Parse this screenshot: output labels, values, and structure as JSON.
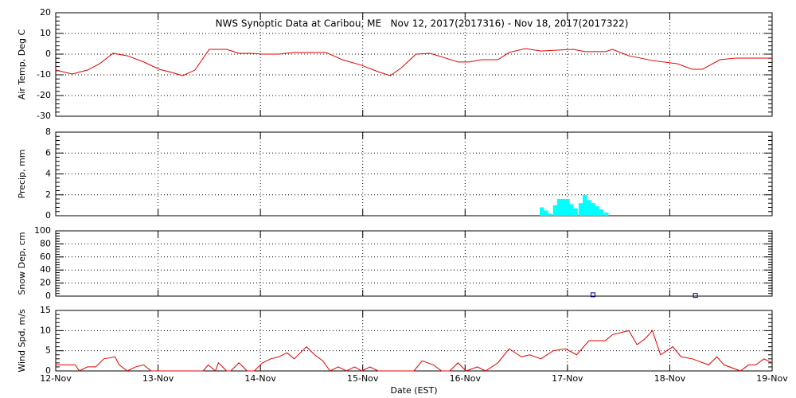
{
  "chart_data": [
    {
      "type": "line",
      "title": "NWS Synoptic Data at Caribou, ME   Nov 12, 2017(2017316) - Nov 18, 2017(2017322)",
      "ylabel": "Air Temp, Deg C",
      "color": "#e00000",
      "x": [
        0,
        0.16,
        0.31,
        0.43,
        0.56,
        0.7,
        0.86,
        1.01,
        1.13,
        1.24,
        1.36,
        1.5,
        1.67,
        1.79,
        1.91,
        2.02,
        2.18,
        2.33,
        2.57,
        2.64,
        2.8,
        2.99,
        3.15,
        3.27,
        3.38,
        3.52,
        3.66,
        3.81,
        3.93,
        4.04,
        4.16,
        4.32,
        4.43,
        4.59,
        4.74,
        4.9,
        5.06,
        5.17,
        5.37,
        5.44,
        5.6,
        5.83,
        6.07,
        6.22,
        6.32,
        6.49,
        6.65,
        6.81,
        7
      ],
      "values": [
        -7.7,
        -9.6,
        -7.7,
        -4.6,
        0.4,
        -0.8,
        -3.8,
        -7.3,
        -8.8,
        -10.4,
        -7.7,
        2.3,
        2.3,
        0.4,
        0.4,
        0,
        0,
        0.8,
        0.8,
        0.8,
        -2.7,
        -5.4,
        -8.5,
        -10.4,
        -6.5,
        0,
        0.4,
        -1.9,
        -3.8,
        -3.8,
        -2.7,
        -2.7,
        0.8,
        2.7,
        1.5,
        1.9,
        2.3,
        1.2,
        1.2,
        2.3,
        -0.8,
        -3.1,
        -4.6,
        -7.3,
        -7.3,
        -2.7,
        -1.9,
        -1.9,
        -1.9
      ],
      "xlim": [
        0,
        7
      ],
      "xticks": [
        0,
        1,
        2,
        3,
        4,
        5,
        6,
        7
      ],
      "ylim": [
        -30,
        20
      ],
      "yticks": [
        -30,
        -20,
        -10,
        0,
        10,
        20
      ],
      "grid": true
    },
    {
      "type": "bar",
      "ylabel": "Precip, mm",
      "color": "#00ffff",
      "x": [
        4.75,
        4.79,
        4.83,
        4.88,
        4.92,
        4.96,
        5.0,
        5.04,
        5.08,
        5.13,
        5.17,
        5.21,
        5.25,
        5.29,
        5.33,
        5.38
      ],
      "values": [
        0.8,
        0.5,
        0.2,
        1.0,
        1.6,
        1.6,
        1.6,
        1.1,
        0.7,
        1.2,
        2.0,
        1.5,
        1.2,
        0.9,
        0.6,
        0.3
      ],
      "xlim": [
        0,
        7
      ],
      "xticks": [
        0,
        1,
        2,
        3,
        4,
        5,
        6,
        7
      ],
      "ylim": [
        0,
        8
      ],
      "yticks": [
        0,
        2,
        4,
        6,
        8
      ],
      "grid": true
    },
    {
      "type": "scatter",
      "ylabel": "Snow Dep, cm",
      "color": "#000080",
      "x": [
        5.25,
        6.25
      ],
      "values": [
        2,
        1
      ],
      "xlim": [
        0,
        7
      ],
      "xticks": [
        0,
        1,
        2,
        3,
        4,
        5,
        6,
        7
      ],
      "ylim": [
        0,
        100
      ],
      "yticks": [
        0,
        20,
        40,
        60,
        80,
        100
      ],
      "grid": true
    },
    {
      "type": "line",
      "ylabel": "Wind Spd, m/s",
      "xlabel": "Date (EST)",
      "color": "#e00000",
      "x": [
        0,
        0.08,
        0.19,
        0.23,
        0.31,
        0.39,
        0.47,
        0.58,
        0.62,
        0.7,
        0.78,
        0.86,
        0.93,
        1.01,
        1.44,
        1.49,
        1.56,
        1.59,
        1.67,
        1.71,
        1.79,
        1.87,
        1.94,
        2.02,
        2.1,
        2.18,
        2.26,
        2.33,
        2.45,
        2.53,
        2.61,
        2.68,
        2.76,
        2.84,
        2.92,
        2.99,
        3.07,
        3.15,
        3.27,
        3.5,
        3.58,
        3.69,
        3.77,
        3.85,
        3.93,
        4.01,
        4.12,
        4.2,
        4.32,
        4.43,
        4.55,
        4.63,
        4.74,
        4.86,
        4.98,
        5.09,
        5.21,
        5.37,
        5.44,
        5.6,
        5.68,
        5.76,
        5.83,
        5.91,
        6.03,
        6.11,
        6.22,
        6.38,
        6.46,
        6.53,
        6.69,
        6.77,
        6.84,
        6.92,
        7
      ],
      "values": [
        1.5,
        1.5,
        1.5,
        0,
        1,
        1,
        3,
        3.5,
        1.5,
        0,
        1,
        1.5,
        0,
        0,
        0,
        1.5,
        0,
        2,
        0,
        0,
        2,
        0,
        0,
        2,
        3,
        3.5,
        4.5,
        3,
        6,
        4,
        2.5,
        0,
        1,
        0,
        1,
        0,
        1,
        0,
        0,
        0,
        2.5,
        1.5,
        0,
        0,
        2,
        0,
        1,
        0,
        2,
        5.5,
        3.5,
        4,
        3,
        5,
        5.5,
        4,
        7.5,
        7.5,
        9,
        10,
        6.5,
        8,
        10,
        4,
        6,
        3.5,
        3,
        1.5,
        3.5,
        1.5,
        0,
        1.5,
        1.5,
        3,
        2
      ],
      "xlim": [
        0,
        7
      ],
      "xticks": [
        {
          "value": 0,
          "label": "12-Nov"
        },
        {
          "value": 1,
          "label": "13-Nov"
        },
        {
          "value": 2,
          "label": "14-Nov"
        },
        {
          "value": 3,
          "label": "15-Nov"
        },
        {
          "value": 4,
          "label": "16-Nov"
        },
        {
          "value": 5,
          "label": "17-Nov"
        },
        {
          "value": 6,
          "label": "18-Nov"
        },
        {
          "value": 7,
          "label": "19-Nov"
        }
      ],
      "ylim": [
        0,
        15
      ],
      "yticks": [
        0,
        5,
        10,
        15
      ],
      "grid": true
    }
  ]
}
